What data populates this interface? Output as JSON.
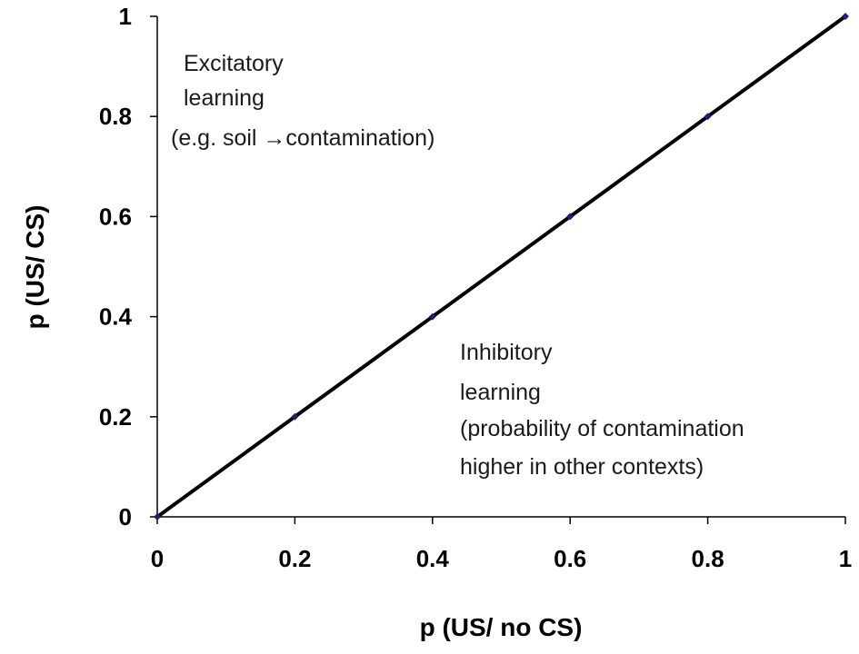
{
  "chart_data": {
    "type": "line",
    "title": "",
    "xlabel": "p (US/ no CS)",
    "ylabel": "p (US/ CS)",
    "xlim": [
      0,
      1
    ],
    "ylim": [
      0,
      1
    ],
    "x_ticks": [
      "0",
      "0.2",
      "0.4",
      "0.6",
      "0.8",
      "1"
    ],
    "y_ticks": [
      "0",
      "0.2",
      "0.4",
      "0.6",
      "0.8",
      "1"
    ],
    "grid": false,
    "series": [
      {
        "x": [
          0,
          0.2,
          0.4,
          0.6,
          0.8,
          1
        ],
        "values": [
          0,
          0.2,
          0.4,
          0.6,
          0.8,
          1
        ],
        "line_color": "#000000",
        "marker_color": "#1f1f7a"
      }
    ],
    "annotations": {
      "excitatory": [
        "Excitatory",
        "learning",
        "(e.g. soil →contamination)"
      ],
      "inhibitory": [
        "Inhibitory",
        "learning",
        "(probability of contamination",
        "higher in other contexts)"
      ]
    }
  }
}
